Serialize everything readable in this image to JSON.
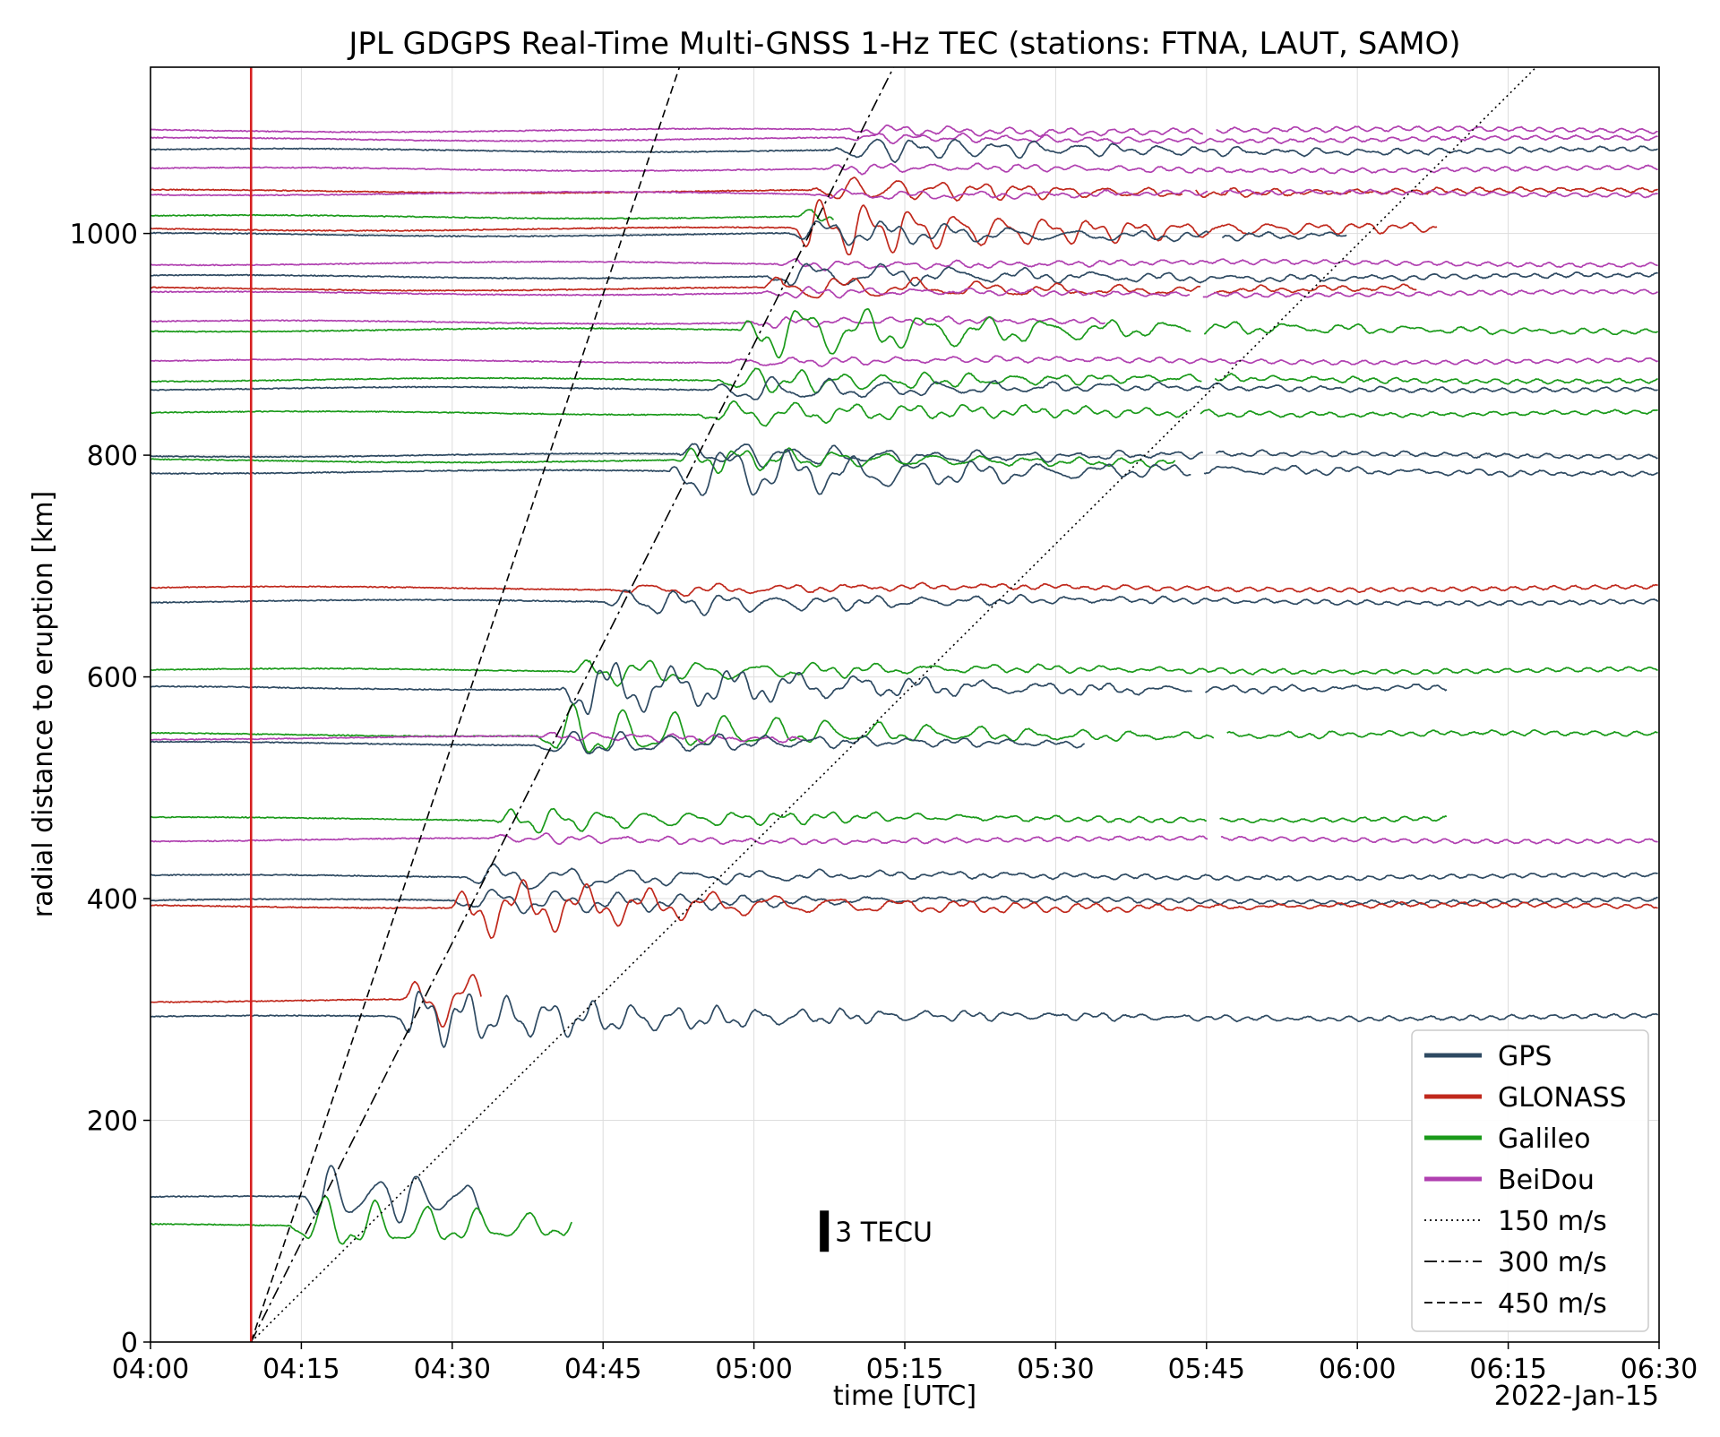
{
  "chart_data": {
    "type": "line",
    "title": "JPL GDGPS Real-Time Multi-GNSS 1-Hz TEC (stations: FTNA, LAUT, SAMO)",
    "xlabel": "time [UTC]",
    "ylabel": "radial distance to eruption [km]",
    "date_label": "2022-Jan-15",
    "xlim": [
      "04:00",
      "06:30"
    ],
    "ylim": [
      0,
      1150
    ],
    "x_ticks": [
      "04:00",
      "04:15",
      "04:30",
      "04:45",
      "05:00",
      "05:15",
      "05:30",
      "05:45",
      "06:00",
      "06:15",
      "06:30"
    ],
    "y_ticks": [
      0,
      200,
      400,
      600,
      800,
      1000
    ],
    "grid": true,
    "eruption_marker": {
      "time": "04:10",
      "color": "#d62020"
    },
    "scale_bar": {
      "label": "3 TECU",
      "time": "05:07",
      "center_km": 100,
      "height_tecu": 3
    },
    "legend": {
      "position": "bottom-right",
      "entries": [
        {
          "label": "GPS",
          "color": "#2e4a62",
          "style": "solid"
        },
        {
          "label": "GLONASS",
          "color": "#c0281c",
          "style": "solid"
        },
        {
          "label": "Galileo",
          "color": "#1a9a1a",
          "style": "solid"
        },
        {
          "label": "BeiDou",
          "color": "#b040b0",
          "style": "solid"
        },
        {
          "label": "150 m/s",
          "color": "#000000",
          "style": "dotted"
        },
        {
          "label": "300 m/s",
          "color": "#000000",
          "style": "dashdot"
        },
        {
          "label": "450 m/s",
          "color": "#000000",
          "style": "dashed"
        }
      ]
    },
    "reference_lines": [
      {
        "speed_label": "150 m/s",
        "speed_ms": 150,
        "start": "04:10",
        "style": "dotted"
      },
      {
        "speed_label": "300 m/s",
        "speed_ms": 300,
        "start": "04:10",
        "style": "dashdot"
      },
      {
        "speed_label": "450 m/s",
        "speed_ms": 450,
        "start": "04:10",
        "style": "dashed"
      }
    ],
    "series": [
      {
        "system": "BeiDou",
        "offset": 1093,
        "start": "04:00",
        "end": "06:30"
      },
      {
        "system": "BeiDou",
        "offset": 1085,
        "start": "04:00",
        "end": "06:30"
      },
      {
        "system": "GPS",
        "offset": 1075,
        "start": "04:00",
        "end": "06:30",
        "disturb": "moderate"
      },
      {
        "system": "BeiDou",
        "offset": 1058,
        "start": "04:00",
        "end": "06:30"
      },
      {
        "system": "GLONASS",
        "offset": 1038,
        "start": "04:00",
        "end": "06:30",
        "disturb": "moderate"
      },
      {
        "system": "BeiDou",
        "offset": 1036,
        "start": "04:00",
        "end": "06:30"
      },
      {
        "system": "Galileo",
        "offset": 1015,
        "start": "04:00",
        "end": "05:08",
        "disturb": "moderate"
      },
      {
        "system": "GLONASS",
        "offset": 1004,
        "start": "04:00",
        "end": "06:08",
        "disturb": "strong"
      },
      {
        "system": "GPS",
        "offset": 999,
        "start": "04:00",
        "end": "05:59",
        "disturb": "moderate"
      },
      {
        "system": "BeiDou",
        "offset": 973,
        "start": "04:00",
        "end": "06:30"
      },
      {
        "system": "GPS",
        "offset": 961,
        "start": "04:00",
        "end": "06:30",
        "disturb": "moderate"
      },
      {
        "system": "GLONASS",
        "offset": 950,
        "start": "04:00",
        "end": "06:06",
        "disturb": "moderate"
      },
      {
        "system": "BeiDou",
        "offset": 946,
        "start": "04:00",
        "end": "06:30"
      },
      {
        "system": "BeiDou",
        "offset": 920,
        "start": "04:00",
        "end": "05:35"
      },
      {
        "system": "Galileo",
        "offset": 913,
        "start": "04:00",
        "end": "06:30",
        "disturb": "strong"
      },
      {
        "system": "BeiDou",
        "offset": 885,
        "start": "04:00",
        "end": "06:30"
      },
      {
        "system": "Galileo",
        "offset": 868,
        "start": "04:00",
        "end": "06:30",
        "disturb": "moderate"
      },
      {
        "system": "GPS",
        "offset": 860,
        "start": "04:00",
        "end": "06:30",
        "disturb": "moderate"
      },
      {
        "system": "Galileo",
        "offset": 838,
        "start": "04:00",
        "end": "06:30",
        "disturb": "moderate"
      },
      {
        "system": "GPS",
        "offset": 800,
        "start": "04:00",
        "end": "06:30",
        "disturb": "moderate"
      },
      {
        "system": "Galileo",
        "offset": 795,
        "start": "04:00",
        "end": "05:42",
        "disturb": "moderate"
      },
      {
        "system": "GPS",
        "offset": 785,
        "start": "04:00",
        "end": "06:30",
        "disturb": "strong"
      },
      {
        "system": "GLONASS",
        "offset": 680,
        "start": "04:00",
        "end": "06:30",
        "disturb": "weak"
      },
      {
        "system": "GPS",
        "offset": 668,
        "start": "04:00",
        "end": "06:30",
        "disturb": "moderate"
      },
      {
        "system": "Galileo",
        "offset": 606,
        "start": "04:00",
        "end": "06:30",
        "disturb": "moderate"
      },
      {
        "system": "GPS",
        "offset": 590,
        "start": "04:00",
        "end": "06:09",
        "disturb": "strong"
      },
      {
        "system": "Galileo",
        "offset": 548,
        "start": "04:00",
        "end": "06:30",
        "disturb": "strong"
      },
      {
        "system": "BeiDou",
        "offset": 545,
        "start": "04:00",
        "end": "05:05"
      },
      {
        "system": "GPS",
        "offset": 540,
        "start": "04:00",
        "end": "05:33",
        "disturb": "moderate"
      },
      {
        "system": "Galileo",
        "offset": 472,
        "start": "04:00",
        "end": "06:09",
        "disturb": "moderate"
      },
      {
        "system": "BeiDou",
        "offset": 453,
        "start": "04:00",
        "end": "06:30"
      },
      {
        "system": "GPS",
        "offset": 420,
        "start": "04:00",
        "end": "06:30",
        "disturb": "moderate"
      },
      {
        "system": "GPS",
        "offset": 398,
        "start": "04:00",
        "end": "06:30",
        "disturb": "moderate"
      },
      {
        "system": "GLONASS",
        "offset": 393,
        "start": "04:00",
        "end": "06:30",
        "disturb": "strong"
      },
      {
        "system": "GLONASS",
        "offset": 308,
        "start": "04:00",
        "end": "04:33",
        "disturb": "strong"
      },
      {
        "system": "GPS",
        "offset": 293,
        "start": "04:00",
        "end": "06:30",
        "disturb": "strong"
      },
      {
        "system": "GPS",
        "offset": 130,
        "start": "04:00",
        "end": "04:33",
        "disturb": "strong"
      },
      {
        "system": "Galileo",
        "offset": 105,
        "start": "04:00",
        "end": "04:42",
        "disturb": "strong"
      }
    ]
  }
}
